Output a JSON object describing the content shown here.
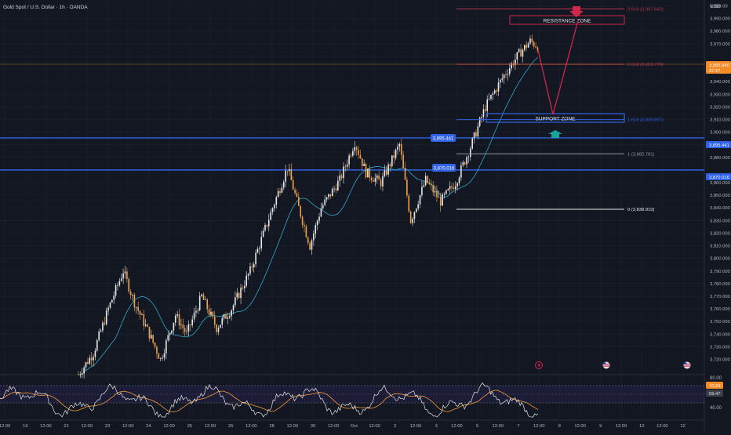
{
  "header": {
    "title": "Gold Spot / U.S. Dollar · 1h · OANDA",
    "currency": "USD"
  },
  "colors": {
    "background": "#131722",
    "grid": "#1e222d",
    "bull": "#e8e8e8",
    "bear": "#f2a34a",
    "ma": "#2fa8c8",
    "hline": "#2f62e6",
    "resistance": "#d0274a",
    "support": "#2f62e6",
    "rsi": "#e6e6e6",
    "rsi_ma": "#f59b37",
    "current_price_bg": "#f28c28",
    "arrow_up": "#1aa39a"
  },
  "price_axis": {
    "ticks": [
      "4,000.00",
      "3,990.000",
      "3,980.000",
      "3,970.000",
      "3,950.000",
      "3,940.000",
      "3,930.000",
      "3,920.000",
      "3,910.000",
      "3,900.000",
      "3,890.000",
      "3,880.000",
      "3,870.000",
      "3,860.000",
      "3,850.000",
      "3,840.000",
      "3,830.000",
      "3,820.000",
      "3,810.000",
      "3,800.000",
      "3,790.000",
      "3,780.000",
      "3,770.000",
      "3,760.000",
      "3,750.000",
      "3,740.000",
      "3,730.000",
      "3,720.000"
    ],
    "current_price": "3,965.940",
    "current_countdown": "37:27",
    "tag_high": "3,895.441",
    "tag_low": "3,870.016"
  },
  "time_axis": [
    "12:00",
    "19",
    "12:00",
    "21",
    "12:00",
    "23",
    "12:00",
    "24",
    "12:00",
    "25",
    "12:00",
    "26",
    "12:00",
    "28",
    "12:00",
    "30",
    "12:00",
    "Oct",
    "12:00",
    "2",
    "12:00",
    "3",
    "12:00",
    "5",
    "12:00",
    "7",
    "12:00",
    "8",
    "12:00",
    "9",
    "12:00",
    "10",
    "12:00",
    "12"
  ],
  "fib_levels": [
    {
      "label": "3.618 (3,997.643)",
      "value": 3997.643
    },
    {
      "label": "2.618 (3,953.770)",
      "value": 3953.77
    },
    {
      "label": "1.618 (3,909.897)",
      "value": 3909.897
    },
    {
      "label": "1 (3,882.781)",
      "value": 3882.781
    },
    {
      "label": "0 (3,838.910)",
      "value": 3838.91
    }
  ],
  "zones": {
    "resistance": "RESISTANCE ZONE",
    "support": "SUPPORT ZONE"
  },
  "annotations": {
    "left_high": "3,895.441",
    "left_low": "3,870.016"
  },
  "rsi": {
    "ticks": [
      "80.00",
      "60.00",
      "40.00"
    ],
    "value": "70.24",
    "ma_value": "59.47"
  },
  "chart_data": {
    "type": "candlestick",
    "title": "Gold Spot / U.S. Dollar · 1h · OANDA",
    "ylim": [
      3712,
      4006
    ],
    "key_levels": [
      3895.441,
      3870.016
    ],
    "path_points": [
      [
        0,
        3708
      ],
      [
        8,
        3725
      ],
      [
        16,
        3760
      ],
      [
        24,
        3790
      ],
      [
        30,
        3765
      ],
      [
        38,
        3740
      ],
      [
        44,
        3720
      ],
      [
        52,
        3755
      ],
      [
        58,
        3740
      ],
      [
        66,
        3770
      ],
      [
        74,
        3745
      ],
      [
        82,
        3760
      ],
      [
        92,
        3790
      ],
      [
        104,
        3840
      ],
      [
        112,
        3872
      ],
      [
        118,
        3840
      ],
      [
        124,
        3810
      ],
      [
        130,
        3840
      ],
      [
        140,
        3862
      ],
      [
        148,
        3892
      ],
      [
        154,
        3868
      ],
      [
        162,
        3860
      ],
      [
        172,
        3890
      ],
      [
        176,
        3850
      ],
      [
        178,
        3830
      ],
      [
        186,
        3862
      ],
      [
        194,
        3845
      ],
      [
        202,
        3860
      ],
      [
        210,
        3888
      ],
      [
        218,
        3920
      ],
      [
        228,
        3945
      ],
      [
        236,
        3962
      ],
      [
        242,
        3972
      ],
      [
        246,
        3968
      ]
    ]
  }
}
